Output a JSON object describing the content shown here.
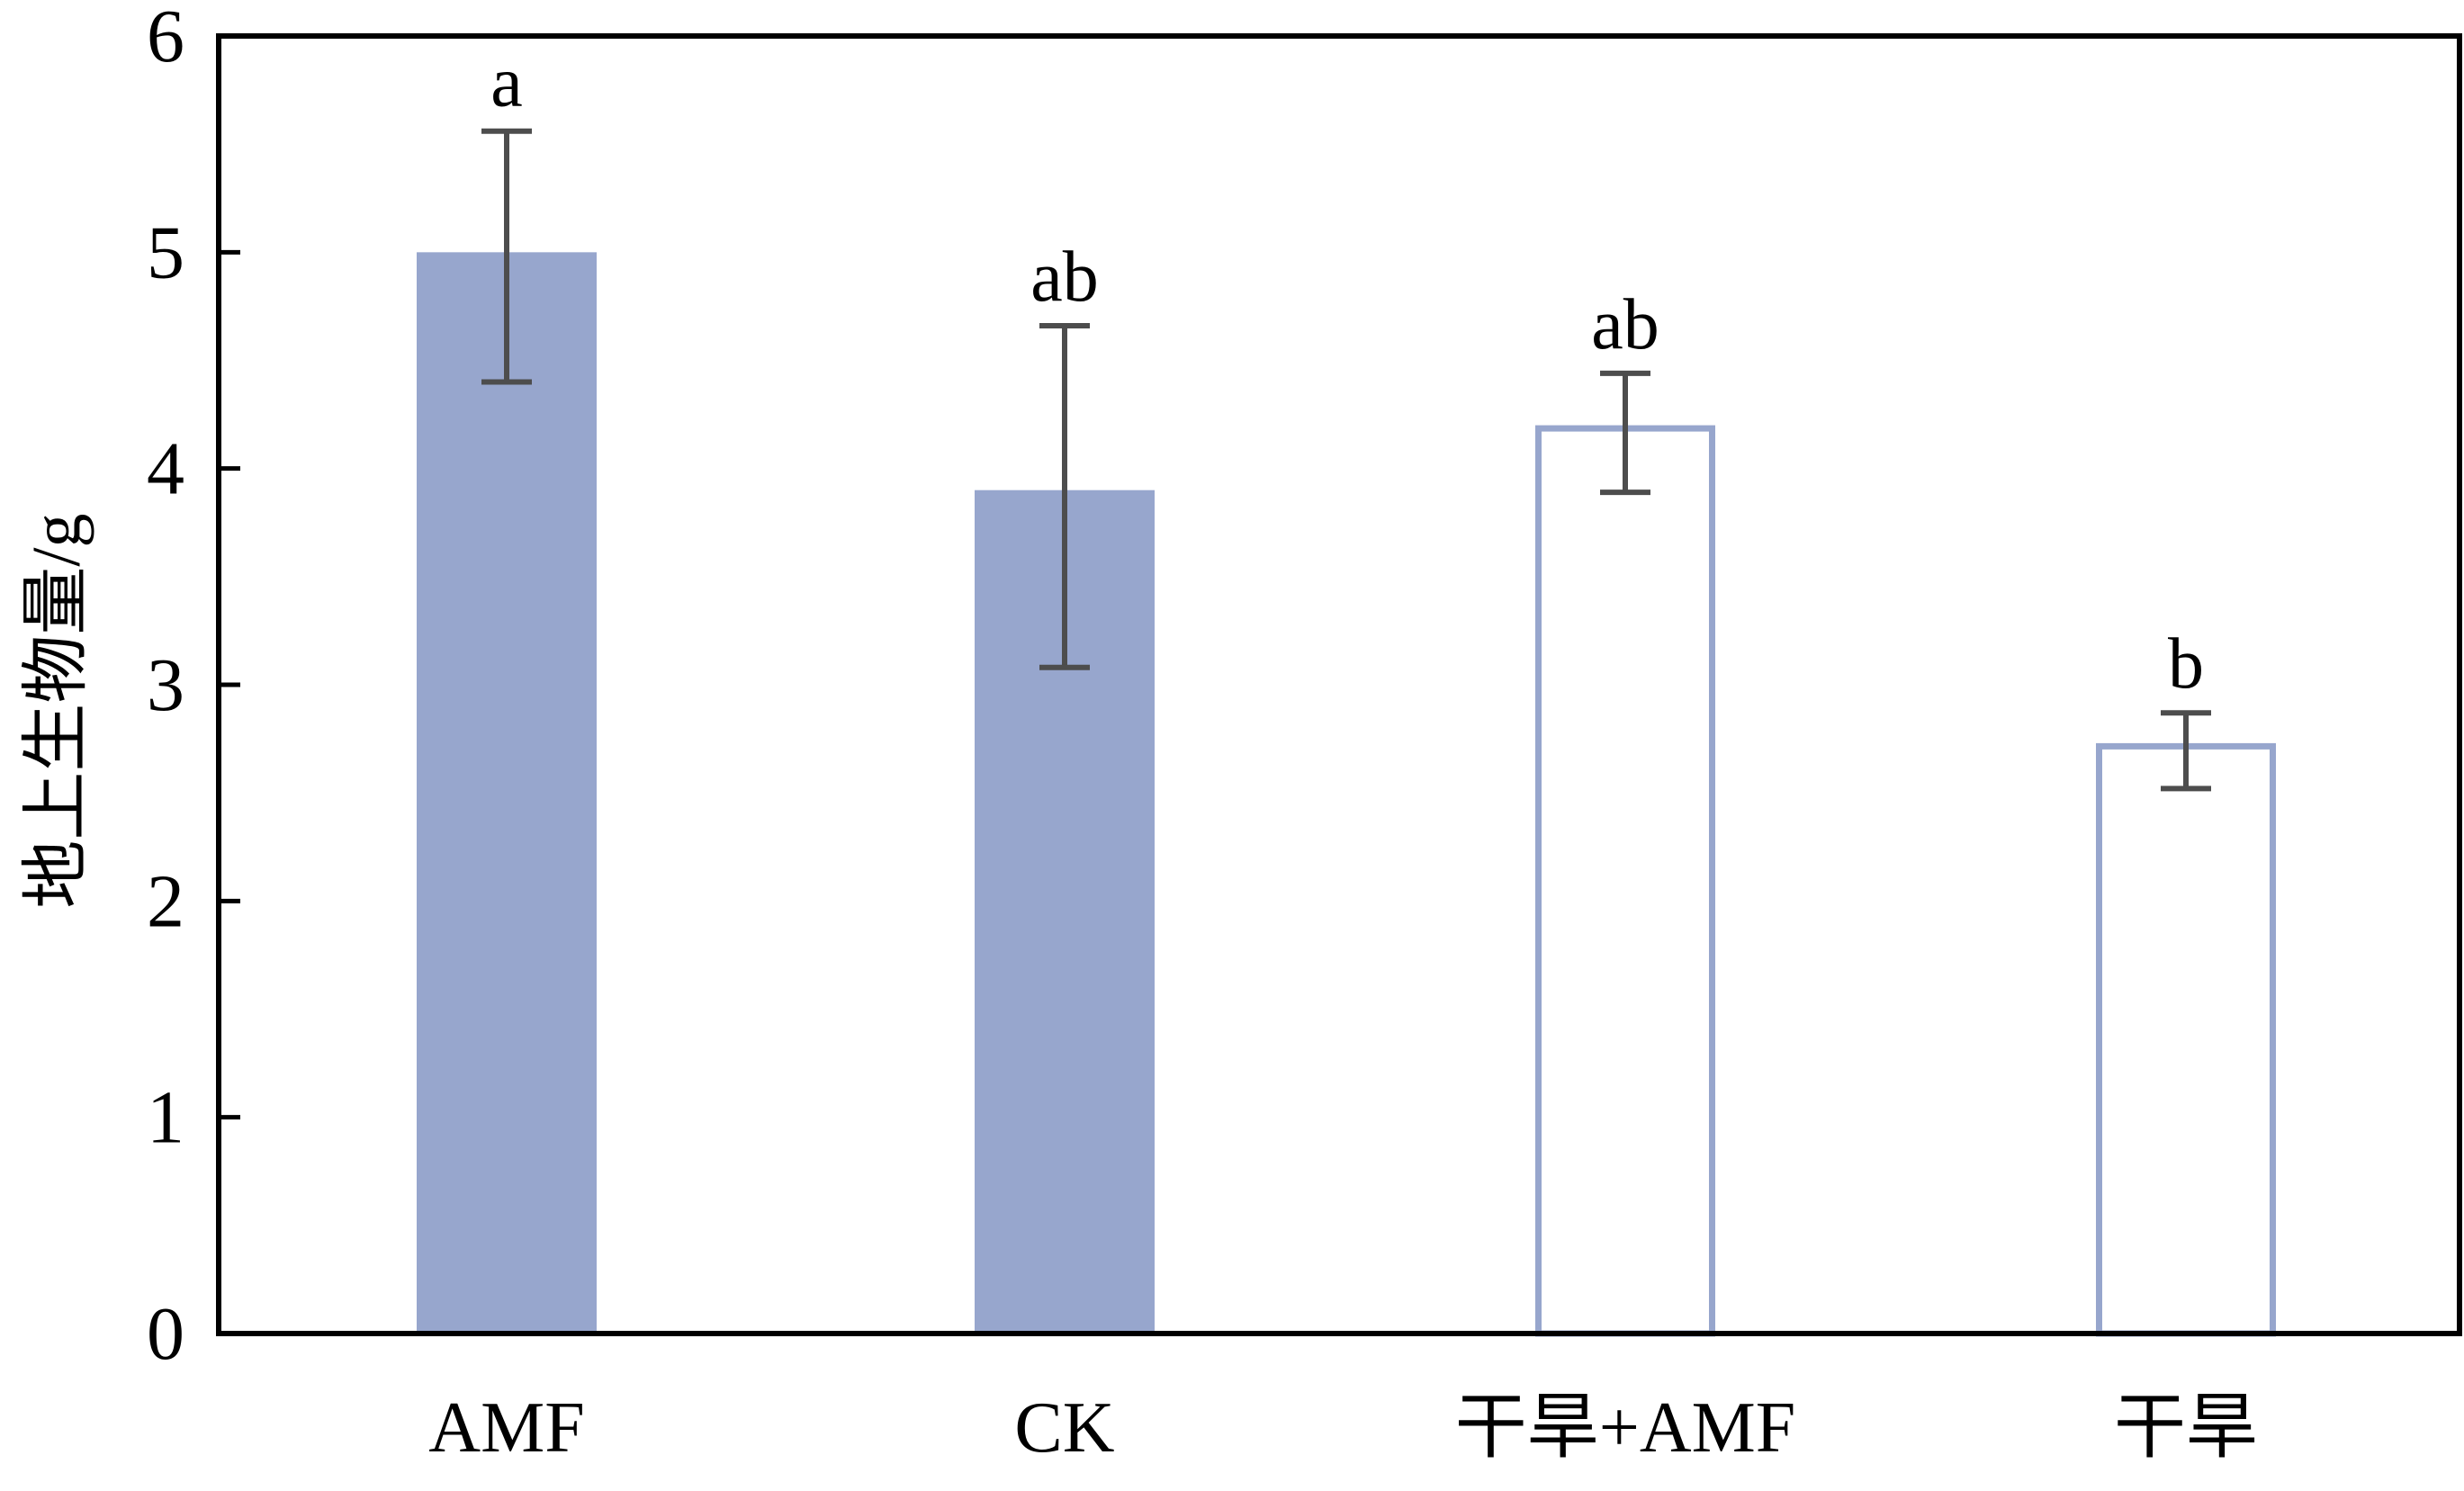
{
  "chart_data": {
    "type": "bar",
    "title": "",
    "xlabel": "",
    "ylabel": "地上生物量/g",
    "ylim": [
      0,
      6
    ],
    "yticks": [
      0,
      1,
      2,
      3,
      4,
      5,
      6
    ],
    "grid": false,
    "categories": [
      "AMF",
      "CK",
      "干旱+AMF",
      "干旱"
    ],
    "values": [
      5.0,
      3.9,
      4.2,
      2.73
    ],
    "error_low": [
      4.4,
      3.08,
      3.89,
      2.52
    ],
    "error_high": [
      5.56,
      4.66,
      4.44,
      2.87
    ],
    "significance_letters": [
      "a",
      "ab",
      "ab",
      "b"
    ],
    "bar_styles": [
      "filled",
      "filled",
      "outline",
      "outline"
    ],
    "colors": {
      "bar": "#97a6cd",
      "error_bar": "#4d4d4d",
      "axis": "#000000"
    }
  }
}
